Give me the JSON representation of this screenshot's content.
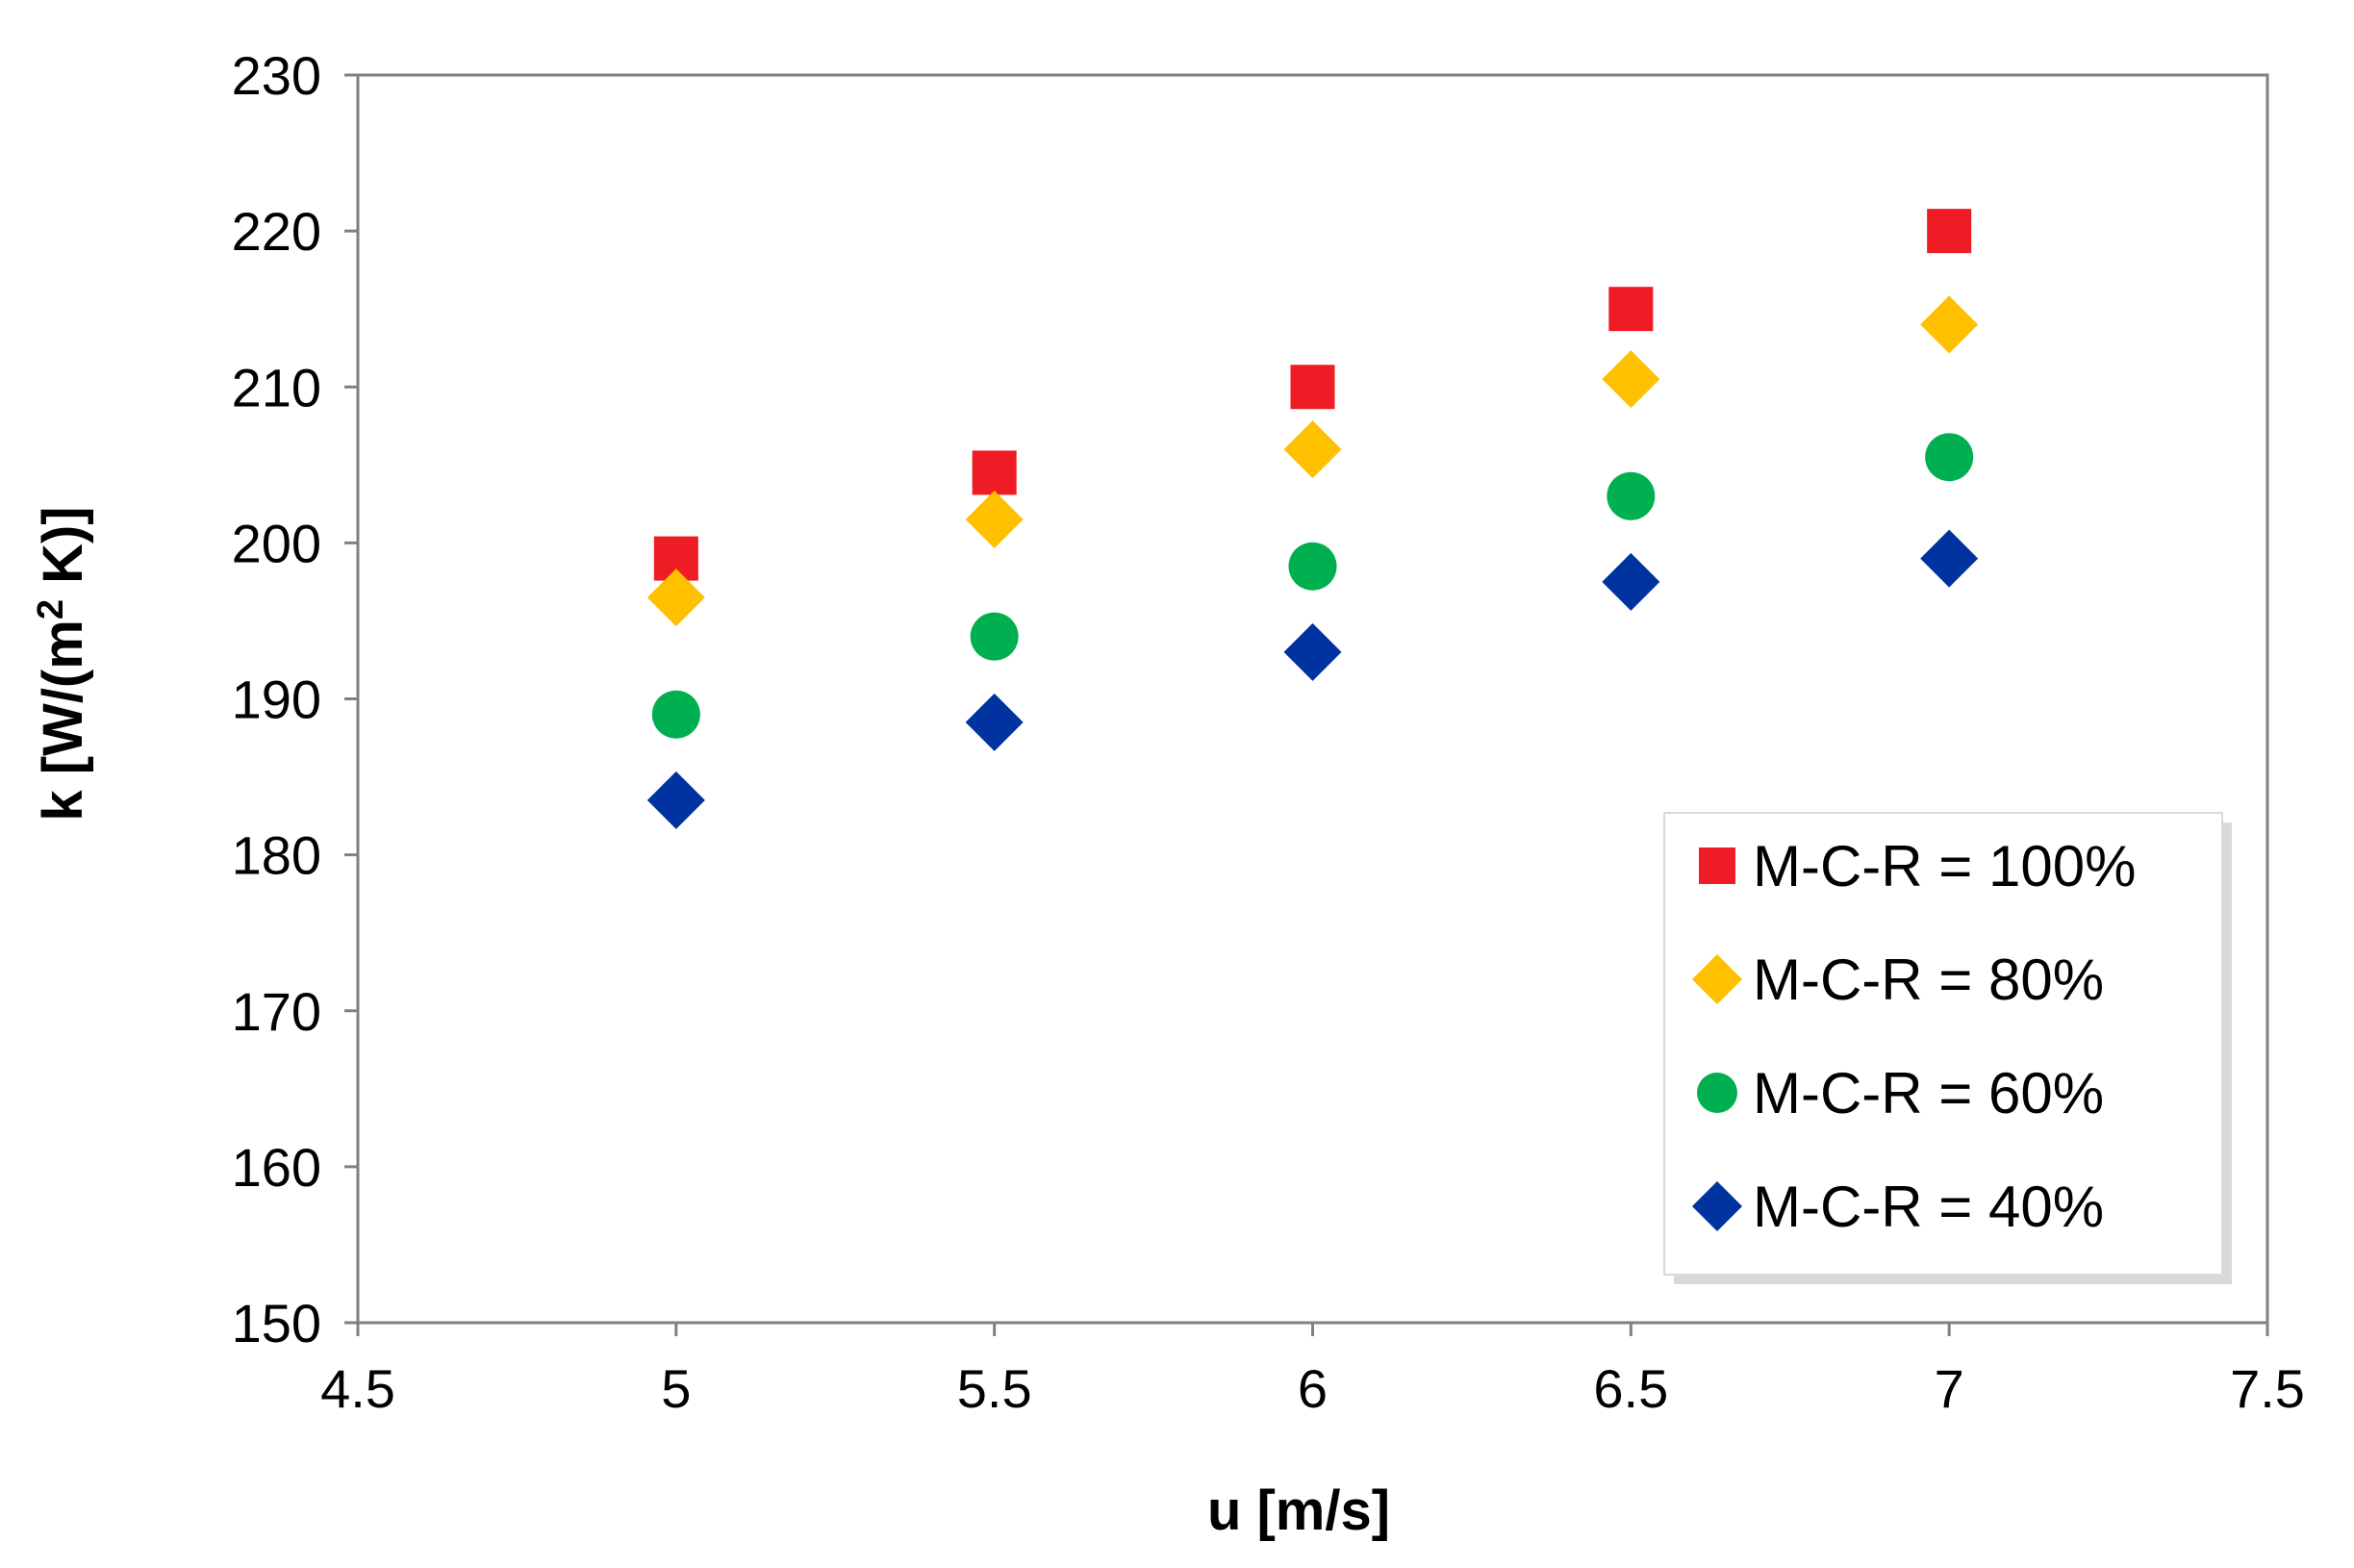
{
  "chart_data": {
    "type": "scatter",
    "title": "",
    "xlabel": "u [m/s]",
    "ylabel_parts": {
      "before": "k [W/(m",
      "sup": "2",
      "after": " K)]"
    },
    "xlim": [
      4.5,
      7.5
    ],
    "ylim": [
      150,
      230
    ],
    "xticks": [
      4.5,
      5,
      5.5,
      6,
      6.5,
      7,
      7.5
    ],
    "yticks": [
      150,
      160,
      170,
      180,
      190,
      200,
      210,
      220,
      230
    ],
    "xtick_labels": [
      "4.5",
      "5",
      "5.5",
      "6",
      "6.5",
      "7",
      "7.5"
    ],
    "ytick_labels": [
      "150",
      "160",
      "170",
      "180",
      "190",
      "200",
      "210",
      "220",
      "230"
    ],
    "grid": false,
    "legend_position": "bottom-right",
    "x": [
      5,
      5.5,
      6,
      6.5,
      7
    ],
    "series": [
      {
        "name": "M-C-R = 100%",
        "marker": "square",
        "color": "#ee1c25",
        "values": [
          199,
          204.5,
          210,
          215,
          220
        ]
      },
      {
        "name": "M-C-R = 80%",
        "marker": "diamond",
        "color": "#ffc000",
        "values": [
          196.5,
          201.5,
          206,
          210.5,
          214
        ]
      },
      {
        "name": "M-C-R = 60%",
        "marker": "circle",
        "color": "#00b050",
        "values": [
          189,
          194,
          198.5,
          203,
          205.5
        ]
      },
      {
        "name": "M-C-R = 40%",
        "marker": "diamond",
        "color": "#0033a0",
        "values": [
          183.5,
          188.5,
          193,
          197.5,
          199
        ]
      }
    ]
  }
}
